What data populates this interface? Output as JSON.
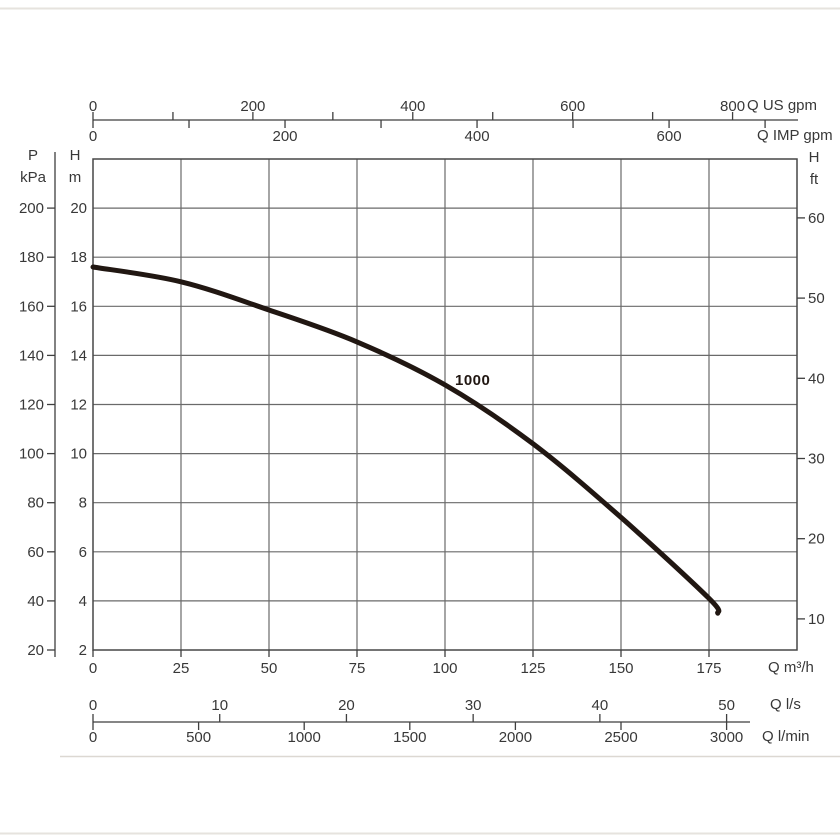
{
  "chart_data": {
    "type": "line",
    "series": [
      {
        "name": "1000",
        "label": "1000",
        "x_m3h": [
          0,
          25,
          50,
          75,
          100,
          125,
          150,
          175,
          177.5
        ],
        "head_m": [
          17.6,
          17.0,
          15.85,
          14.55,
          12.8,
          10.4,
          7.4,
          4.1,
          3.5
        ],
        "color": "#211712"
      }
    ],
    "axes": {
      "x_flow_m3h": {
        "unit_label": "Q m³/h",
        "min": 0,
        "max": 200,
        "grid_step": 25,
        "tick_labels": [
          0,
          25,
          50,
          75,
          100,
          125,
          150,
          175
        ]
      },
      "y_head_m": {
        "unit_label_lines": [
          "H",
          "m"
        ],
        "min": 2,
        "max": 22,
        "grid_step": 2,
        "tick_labels": [
          2,
          4,
          6,
          8,
          10,
          12,
          14,
          16,
          18,
          20
        ]
      },
      "y_pressure_kpa": {
        "unit_label_lines": [
          "P",
          "kPa"
        ],
        "kpa_per_m": 10,
        "tick_labels": [
          20,
          40,
          60,
          80,
          100,
          120,
          140,
          160,
          180,
          200
        ]
      },
      "y_head_ft": {
        "unit_label_lines": [
          "H",
          "ft"
        ],
        "tick_labels": [
          10,
          20,
          30,
          40,
          50,
          60
        ]
      },
      "x_flow_us_gpm": {
        "unit_label": "Q US gpm",
        "m3h_per_unit": 0.22712,
        "labeled_ticks": [
          0,
          200,
          400,
          600,
          800
        ],
        "minor_ticks": [
          100,
          300,
          500,
          700
        ]
      },
      "x_flow_imp_gpm": {
        "unit_label": "Q IMP gpm",
        "m3h_per_unit": 0.27276,
        "labeled_ticks": [
          0,
          200,
          400,
          600
        ],
        "minor_ticks": [
          100,
          300,
          500,
          700
        ]
      },
      "x_flow_ls": {
        "unit_label": "Q l/s",
        "m3h_per_unit": 3.6,
        "tick_labels": [
          0,
          10,
          20,
          30,
          40,
          50
        ]
      },
      "x_flow_lmin": {
        "unit_label": "Q l/min",
        "m3h_per_unit": 0.06,
        "tick_labels": [
          0,
          500,
          1000,
          1500,
          2000,
          2500,
          3000
        ]
      }
    },
    "grid": {
      "show": true
    },
    "colors": {
      "background": "#ffffff",
      "grid_line": "#6a6a6a",
      "plot_border": "#474747",
      "axis_line": "#3f3f3f",
      "text": "#383838",
      "curve": "#211712"
    }
  }
}
